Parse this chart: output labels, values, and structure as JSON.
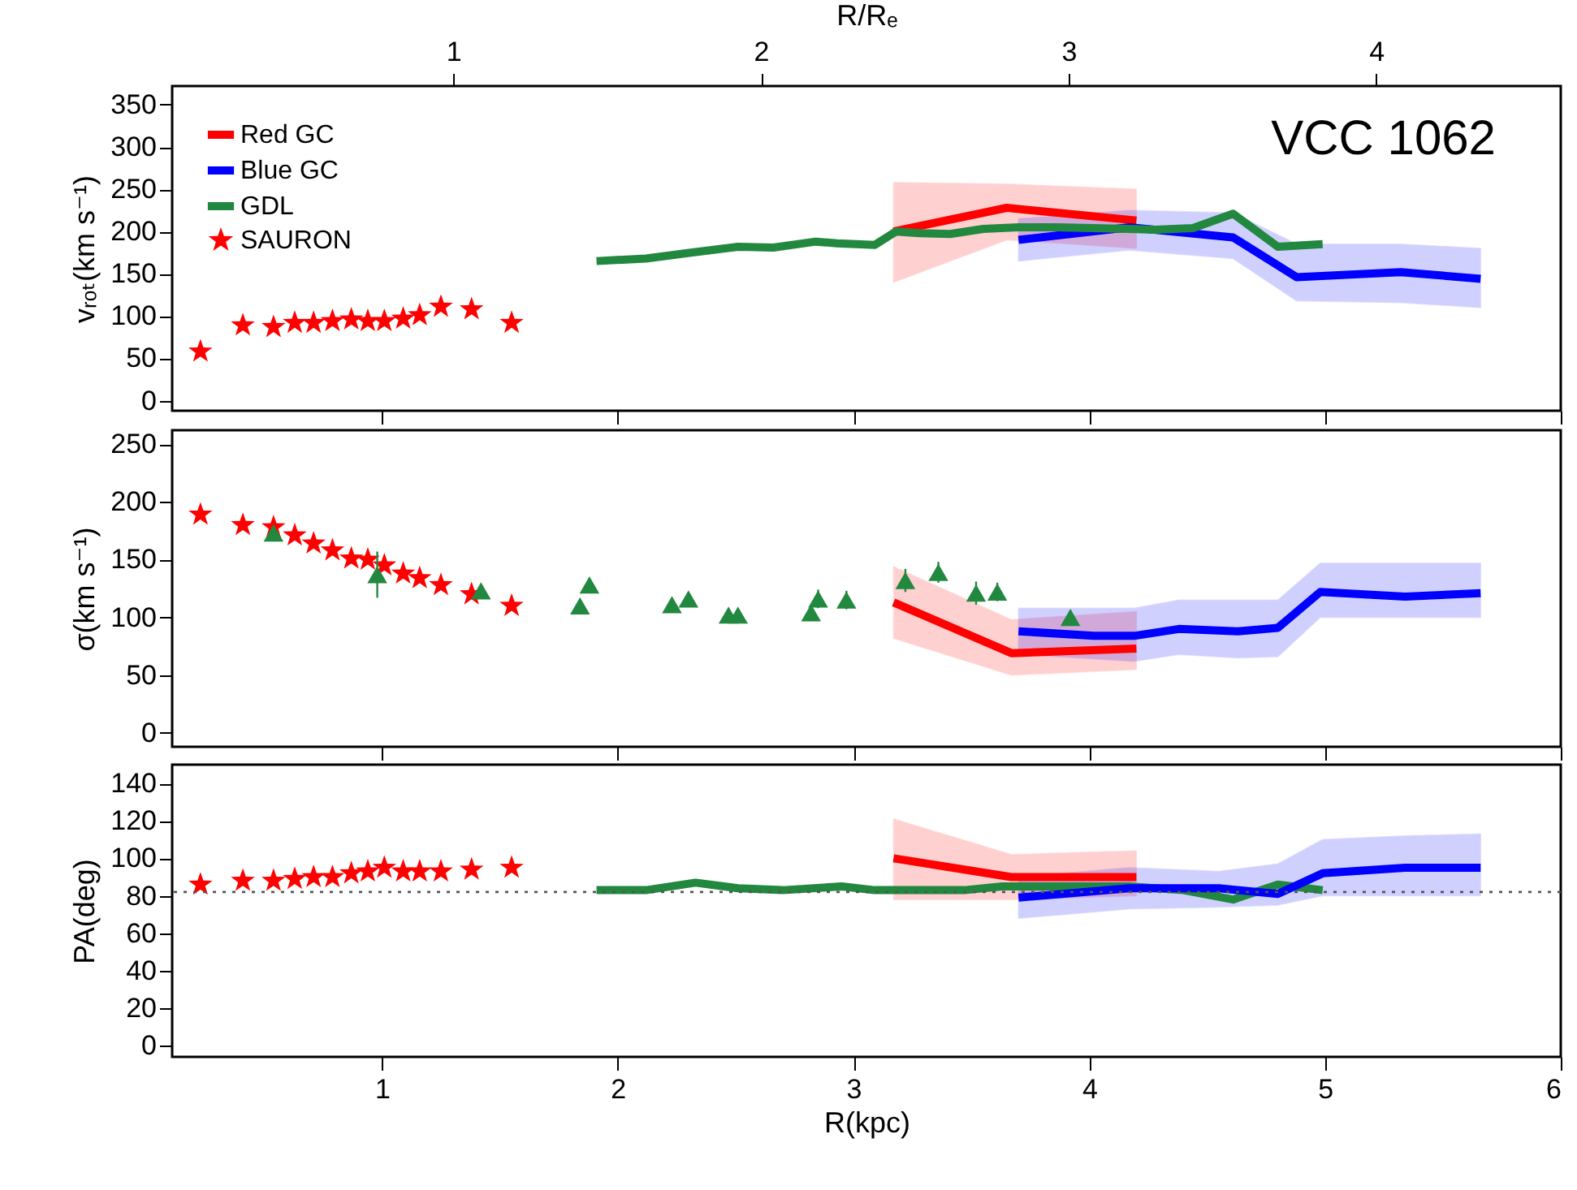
{
  "chart_data": [
    {
      "type": "line",
      "ylabel": "vᵣₒₜ(km s⁻¹)",
      "x2label": "R/Rₑ",
      "x2lim": [
        0.086,
        4.6
      ],
      "x2ticks": [
        1,
        2,
        3,
        4
      ],
      "xlim": [
        0.11,
        6
      ],
      "xticks": [
        1,
        2,
        3,
        4,
        5,
        6
      ],
      "ylim": [
        -12,
        372
      ],
      "yticks": [
        0,
        50,
        100,
        150,
        200,
        250,
        300,
        350
      ],
      "tick_labels": "y",
      "grid": false,
      "legend": "top left",
      "annotations": [
        "VCC 1062"
      ],
      "series": [
        {
          "name": "Red GC",
          "type": "line",
          "color": "#ff0000",
          "x": [
            3.17,
            3.65,
            4.2
          ],
          "values": [
            200,
            228,
            213
          ],
          "lower": [
            140,
            190,
            180
          ],
          "upper": [
            258,
            256,
            250
          ]
        },
        {
          "name": "Blue GC",
          "type": "line",
          "color": "#0000ff",
          "x": [
            3.7,
            4.17,
            4.61,
            4.88,
            5.32,
            5.66
          ],
          "values": [
            190,
            205,
            193,
            146,
            152,
            144
          ],
          "lower": [
            165,
            178,
            168,
            118,
            116,
            110
          ],
          "upper": [
            215,
            225,
            222,
            185,
            185,
            180
          ]
        },
        {
          "name": "GDL",
          "color": "#22883f",
          "x": [
            1.91,
            2.12,
            2.31,
            2.51,
            2.66,
            2.84,
            2.93,
            3.09,
            3.18,
            3.28,
            3.41,
            3.55,
            3.7,
            3.86,
            4.01,
            4.17,
            4.28,
            4.44,
            4.61,
            4.8,
            4.99
          ],
          "values": [
            165,
            168,
            175,
            182,
            181,
            188,
            186,
            184,
            200,
            198,
            197,
            203,
            205,
            205,
            204,
            203,
            202,
            204,
            221,
            182,
            185
          ]
        },
        {
          "name": "SAURON",
          "type": "scatter",
          "marker": "star",
          "color": "#ff0000",
          "x": [
            0.23,
            0.41,
            0.54,
            0.63,
            0.71,
            0.79,
            0.87,
            0.94,
            1.01,
            1.09,
            1.16,
            1.25,
            1.38,
            1.55
          ],
          "values": [
            58,
            89,
            87,
            92,
            92,
            94,
            96,
            94,
            94,
            97,
            101,
            111,
            108,
            92
          ]
        }
      ]
    },
    {
      "type": "line",
      "ylabel": "σ(km s⁻¹)",
      "xlim": [
        0.11,
        6
      ],
      "xticks": [
        1,
        2,
        3,
        4,
        5,
        6
      ],
      "ylim": [
        -12,
        262
      ],
      "yticks": [
        0,
        50,
        100,
        150,
        200,
        250
      ],
      "tick_labels": "y",
      "grid": false,
      "series": [
        {
          "type": "scatter",
          "marker": "star",
          "color": "#ff0000",
          "x": [
            0.23,
            0.41,
            0.54,
            0.63,
            0.71,
            0.79,
            0.87,
            0.94,
            1.01,
            1.09,
            1.16,
            1.25,
            1.38,
            1.55
          ],
          "values": [
            189,
            180,
            178,
            171,
            164,
            158,
            151,
            150,
            145,
            138,
            134,
            128,
            120,
            110
          ]
        },
        {
          "type": "scatter",
          "marker": "triangle",
          "color": "#22883f",
          "x": [
            0.54,
            0.98,
            1.42,
            1.84,
            1.88,
            2.23,
            2.3,
            2.47,
            2.51,
            2.82,
            2.85,
            2.97,
            3.22,
            3.36,
            3.52,
            3.61,
            3.92
          ],
          "values": [
            173,
            137,
            123,
            110,
            128,
            111,
            116,
            102,
            102,
            104,
            116,
            115,
            132,
            139,
            121,
            122,
            100
          ],
          "errors": [
            4,
            20,
            5,
            5,
            6,
            5,
            6,
            5,
            4,
            6,
            8,
            8,
            10,
            9,
            10,
            8,
            6
          ]
        },
        {
          "color": "#ff0000",
          "x": [
            3.17,
            3.67,
            4.2
          ],
          "values": [
            113,
            69,
            73
          ],
          "lower": [
            82,
            50,
            55
          ],
          "upper": [
            144,
            98,
            105
          ]
        },
        {
          "type": "line",
          "color": "#0000ff",
          "x": [
            3.7,
            4.02,
            4.19,
            4.38,
            4.63,
            4.8,
            4.98,
            5.34,
            5.66
          ],
          "values": [
            88,
            84,
            84,
            90,
            88,
            91,
            122,
            118,
            121
          ],
          "lower": [
            68,
            64,
            62,
            68,
            65,
            66,
            100,
            100,
            100
          ],
          "upper": [
            108,
            108,
            108,
            115,
            115,
            115,
            147,
            147,
            147
          ]
        }
      ]
    },
    {
      "type": "line",
      "ylabel": "PA(deg)",
      "xlabel": "R(kpc)",
      "xlim": [
        0.11,
        6
      ],
      "xticks": [
        1,
        2,
        3,
        4,
        5,
        6
      ],
      "ylim": [
        -6,
        150
      ],
      "yticks": [
        0,
        20,
        40,
        60,
        80,
        100,
        120,
        140
      ],
      "grid": false,
      "ref_lines": [
        {
          "axis": "y",
          "value": 82,
          "line_style": "dotted",
          "color": "#555555"
        }
      ],
      "series": [
        {
          "type": "scatter",
          "marker": "star",
          "color": "#ff0000",
          "x": [
            0.23,
            0.41,
            0.54,
            0.63,
            0.71,
            0.79,
            0.87,
            0.94,
            1.01,
            1.09,
            1.16,
            1.25,
            1.38,
            1.55
          ],
          "values": [
            86,
            88,
            88,
            89,
            90,
            90,
            92,
            93,
            95,
            93,
            93,
            93,
            94,
            95
          ]
        },
        {
          "color": "#22883f",
          "x": [
            1.91,
            2.12,
            2.33,
            2.51,
            2.7,
            2.95,
            3.09,
            3.28,
            3.47,
            3.63,
            3.82,
            4.01,
            4.17,
            4.4,
            4.61,
            4.8,
            4.99
          ],
          "values": [
            83,
            83,
            87,
            84,
            83,
            85,
            83,
            83,
            83,
            85,
            85,
            85,
            85,
            83,
            78,
            86,
            83
          ]
        },
        {
          "type": "line",
          "color": "#ff0000",
          "x": [
            3.17,
            3.67,
            4.2
          ],
          "values": [
            100,
            90,
            90
          ],
          "lower": [
            78,
            78,
            80
          ],
          "upper": [
            121,
            102,
            104
          ]
        },
        {
          "type": "line",
          "color": "#0000ff",
          "x": [
            3.7,
            4.17,
            4.55,
            4.8,
            4.99,
            5.34,
            5.66
          ],
          "values": [
            79,
            84,
            84,
            81,
            92,
            95,
            95
          ],
          "lower": [
            68,
            73,
            74,
            75,
            80,
            80,
            80
          ],
          "upper": [
            90,
            95,
            93,
            97,
            110,
            112,
            113
          ]
        }
      ]
    }
  ]
}
